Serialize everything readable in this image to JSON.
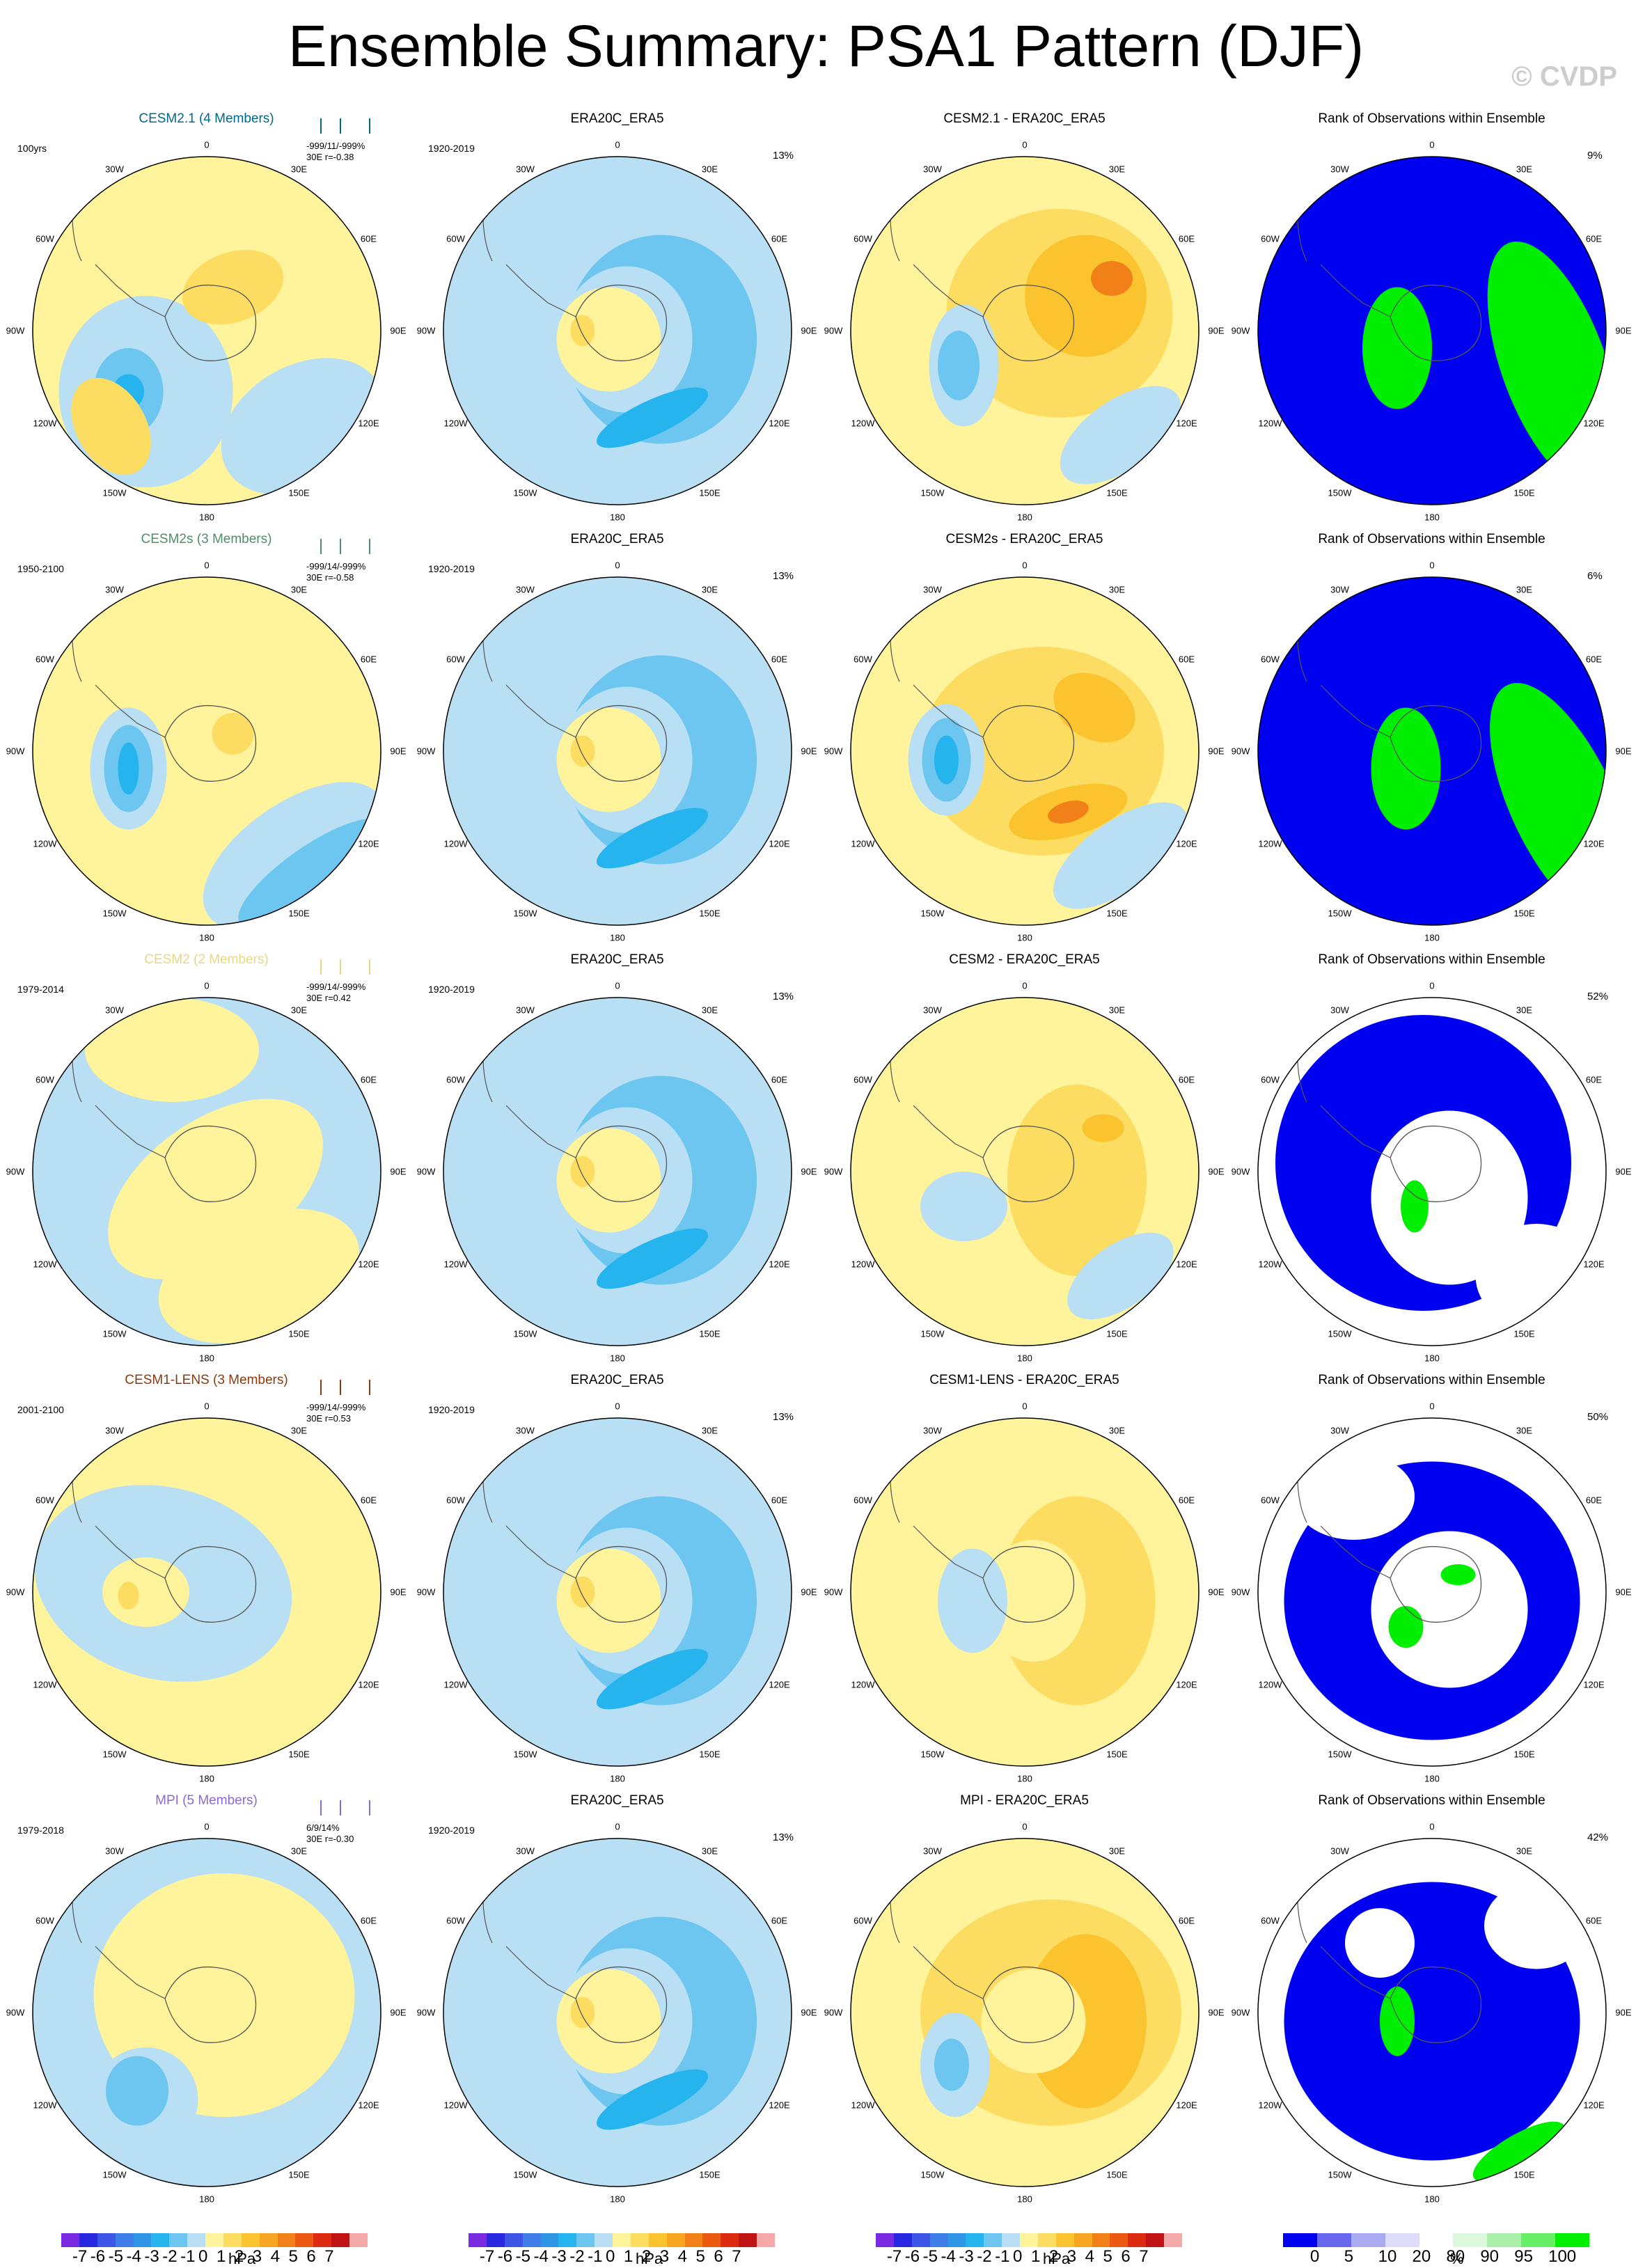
{
  "title": "Ensemble Summary: PSA1 Pattern (DJF)",
  "copyright": "© CVDP",
  "longitude_labels": [
    "0",
    "30E",
    "60E",
    "90E",
    "120E",
    "150E",
    "180",
    "150W",
    "120W",
    "90W",
    "60W",
    "30W"
  ],
  "rows": [
    {
      "model": "CESM2.1 (4 Members)",
      "model_color": "#00688b",
      "period": "100yrs",
      "stats_line1": "-999/11/-999%",
      "stats_line2": "30E r=-0.38",
      "obs_title": "ERA20C_ERA5",
      "obs_period": "1920-2019",
      "obs_pct": "13%",
      "diff_title": "CESM2.1 - ERA20C_ERA5",
      "rank_title": "Rank of Observations within Ensemble",
      "rank_pct": "9%"
    },
    {
      "model": "CESM2s (3 Members)",
      "model_color": "#4f8f67",
      "period": "1950-2100",
      "stats_line1": "-999/14/-999%",
      "stats_line2": "30E r=-0.58",
      "obs_title": "ERA20C_ERA5",
      "obs_period": "1920-2019",
      "obs_pct": "13%",
      "diff_title": "CESM2s - ERA20C_ERA5",
      "rank_title": "Rank of Observations within Ensemble",
      "rank_pct": "6%"
    },
    {
      "model": "CESM2 (2 Members)",
      "model_color": "#e8d785",
      "period": "1979-2014",
      "stats_line1": "-999/14/-999%",
      "stats_line2": "30E r=0.42",
      "obs_title": "ERA20C_ERA5",
      "obs_period": "1920-2019",
      "obs_pct": "13%",
      "diff_title": "CESM2 - ERA20C_ERA5",
      "rank_title": "Rank of Observations within Ensemble",
      "rank_pct": "52%"
    },
    {
      "model": "CESM1-LENS (3 Members)",
      "model_color": "#8b3a0f",
      "period": "2001-2100",
      "stats_line1": "-999/14/-999%",
      "stats_line2": "30E r=0.53",
      "obs_title": "ERA20C_ERA5",
      "obs_period": "1920-2019",
      "obs_pct": "13%",
      "diff_title": "CESM1-LENS - ERA20C_ERA5",
      "rank_title": "Rank of Observations within Ensemble",
      "rank_pct": "50%"
    },
    {
      "model": "MPI (5 Members)",
      "model_color": "#8a6ad4",
      "period": "1979-2018",
      "stats_line1": "6/9/14%",
      "stats_line2": "30E r=-0.30",
      "obs_title": "ERA20C_ERA5",
      "obs_period": "1920-2019",
      "obs_pct": "13%",
      "diff_title": "MPI - ERA20C_ERA5",
      "rank_title": "Rank of Observations within Ensemble",
      "rank_pct": "42%"
    }
  ],
  "colorbar_hpa": {
    "labels": [
      "-7",
      "-6",
      "-5",
      "-4",
      "-3",
      "-2",
      "-1",
      "0",
      "1",
      "2",
      "3",
      "4",
      "5",
      "6",
      "7"
    ],
    "unit": "hPa",
    "colors": [
      "#7a2be2",
      "#2828e0",
      "#3e56e6",
      "#3f7ee8",
      "#2f96e6",
      "#26b4ee",
      "#6cc6f0",
      "#b8dff3",
      "#fff39c",
      "#fcdd62",
      "#fbc42e",
      "#f8a521",
      "#f28019",
      "#ec5a12",
      "#dc2b10",
      "#c01313",
      "#f4a8a8"
    ]
  },
  "colorbar_rank": {
    "labels": [
      "0",
      "5",
      "10",
      "20",
      "80",
      "90",
      "95",
      "100"
    ],
    "unit": "%",
    "colors": [
      "#0000f0",
      "#6666ee",
      "#aaaaf0",
      "#dcdcf8",
      "#ffffff",
      "#dcf8dc",
      "#aaf0aa",
      "#66ee66",
      "#00ee00"
    ]
  },
  "chart_data": {
    "type": "heatmap",
    "title": "Ensemble Summary: PSA1 Pattern (DJF)",
    "description_grid": "5 rows x 4 columns of south polar stereographic maps",
    "columns": [
      "model ensemble mean pattern",
      "observations ERA20C_ERA5",
      "model minus observations",
      "rank of observations within ensemble"
    ],
    "contour_levels_hpa": [
      -7,
      -6,
      -5,
      -4,
      -3,
      -2,
      -1,
      0,
      1,
      2,
      3,
      4,
      5,
      6,
      7
    ],
    "rank_levels_percent": [
      0,
      5,
      10,
      20,
      80,
      90,
      95,
      100
    ],
    "rows": [
      {
        "model": "CESM2.1",
        "members": 4,
        "period": "100yrs",
        "stats": "-999/11/-999%",
        "r": -0.38,
        "obs_pct": 13,
        "rank_pct": 9
      },
      {
        "model": "CESM2s",
        "members": 3,
        "period": "1950-2100",
        "stats": "-999/14/-999%",
        "r": -0.58,
        "obs_pct": 13,
        "rank_pct": 6
      },
      {
        "model": "CESM2",
        "members": 2,
        "period": "1979-2014",
        "stats": "-999/14/-999%",
        "r": 0.42,
        "obs_pct": 13,
        "rank_pct": 52
      },
      {
        "model": "CESM1-LENS",
        "members": 3,
        "period": "2001-2100",
        "stats": "-999/14/-999%",
        "r": 0.53,
        "obs_pct": 13,
        "rank_pct": 50
      },
      {
        "model": "MPI",
        "members": 5,
        "period": "1979-2018",
        "stats": "6/9/14%",
        "r": -0.3,
        "obs_pct": 13,
        "rank_pct": 42
      }
    ]
  }
}
